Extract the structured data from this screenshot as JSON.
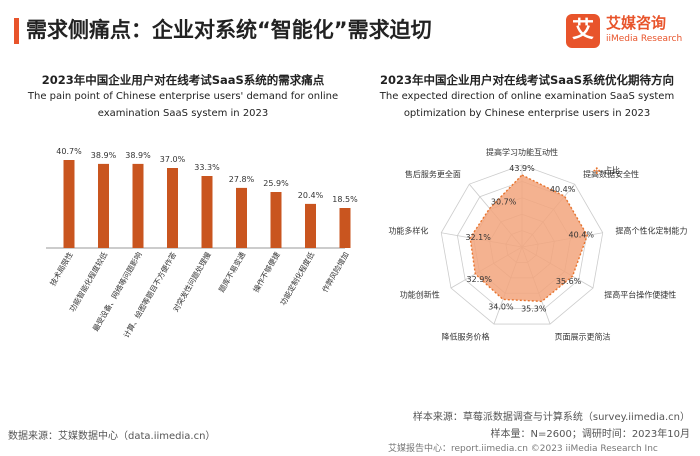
{
  "page_title": "需求侧痛点：企业对系统“智能化”需求迫切",
  "logo": {
    "mark": "艾",
    "cn": "艾媒咨询",
    "en": "iiMedia Research"
  },
  "left_panel": {
    "title_cn": "2023年中国企业用户对在线考试SaaS系统的需求痛点",
    "title_en_line1": "The pain point of Chinese enterprise users' demand for online",
    "title_en_line2": "examination SaaS system in 2023"
  },
  "right_panel": {
    "title_cn": "2023年中国企业用户对在线考试SaaS系统优化期待方向",
    "title_en_line1": "The expected direction of online examination SaaS system",
    "title_en_line2": "optimization by Chinese enterprise users in 2023"
  },
  "colors": {
    "accent": "#e8542b",
    "bar": "#c9551f",
    "radar_fill": "#f2a47d",
    "radar_stroke": "#e8742e",
    "grid": "#cccccc"
  },
  "chart_data": [
    {
      "type": "bar",
      "categories": [
        "技术局限性",
        "功能智能化程度较低",
        "最受设备、网络等问题影响",
        "计算、绘图等题目不方便作答",
        "对突发性问题处理慢",
        "题库不易变通",
        "操作不够便捷",
        "功能定制化程度低",
        "作弊风险增加"
      ],
      "values": [
        40.7,
        38.9,
        38.9,
        37.0,
        33.3,
        27.8,
        25.9,
        20.4,
        18.5
      ],
      "value_labels": [
        "40.7%",
        "38.9%",
        "38.9%",
        "37.0%",
        "33.3%",
        "27.8%",
        "25.9%",
        "20.4%",
        "18.5%"
      ],
      "ylim": [
        0,
        45
      ]
    },
    {
      "type": "radar",
      "categories": [
        "提高学习功能互动性",
        "提高数据安全性",
        "提高个性化定制能力",
        "提高平台操作便捷性",
        "页面展示更简洁",
        "降低服务价格",
        "功能创新性",
        "功能多样化",
        "售后服务更全面"
      ],
      "values": [
        43.9,
        40.4,
        40.4,
        35.6,
        35.3,
        34.0,
        32.9,
        32.1,
        30.7
      ],
      "value_labels": [
        "43.9%",
        "40.4%",
        "40.4%",
        "35.6%",
        "35.3%",
        "34.0%",
        "32.9%",
        "32.1%",
        "30.7%"
      ],
      "series": [
        {
          "name": "占比",
          "values": [
            43.9,
            40.4,
            40.4,
            35.6,
            35.3,
            34.0,
            32.9,
            32.1,
            30.7
          ]
        }
      ],
      "rlim": [
        0,
        50
      ]
    }
  ],
  "footer": {
    "source_left": "数据来源：艾媒数据中心（data.iimedia.cn）",
    "sample_source": "样本来源：草莓派数据调查与计算系统（survey.iimedia.cn）",
    "sample_size": "样本量：N=2600；调研时间：2023年10月",
    "report_line": "艾媒报告中心：report.iimedia.cn ©2023 iiMedia Research Inc"
  }
}
